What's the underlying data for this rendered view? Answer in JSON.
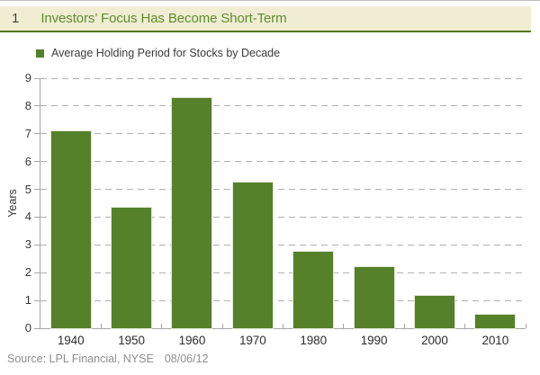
{
  "header": {
    "figure_number": "1",
    "title": "Investors’ Focus Has Become Short-Term"
  },
  "chart_data": {
    "type": "bar",
    "title": "Investors’ Focus Has Become Short-Term",
    "legend": "Average Holding Period for Stocks by Decade",
    "categories": [
      "1940",
      "1950",
      "1960",
      "1970",
      "1980",
      "1990",
      "2000",
      "2010"
    ],
    "values": [
      7.1,
      4.35,
      8.3,
      5.25,
      2.75,
      2.2,
      1.15,
      0.5
    ],
    "xlabel": "",
    "ylabel": "Years",
    "ylim": [
      0,
      9
    ],
    "ytick_step": 1,
    "grid": "horizontal-dashed",
    "legend_position": "top-left",
    "bar_color": "#54812a"
  },
  "footer": {
    "source": "Source: LPL Financial, NYSE",
    "date": "08/06/12"
  },
  "colors": {
    "bar_green": "#54812a",
    "header_background": "#f0edd3",
    "header_title_green": "#5f8c2b",
    "header_rule_green": "#54791f",
    "axis_gray": "#a6a6a6",
    "gridline_gray": "#b0b0b0",
    "label_dark": "#383838",
    "source_gray": "#8f8f8f"
  }
}
